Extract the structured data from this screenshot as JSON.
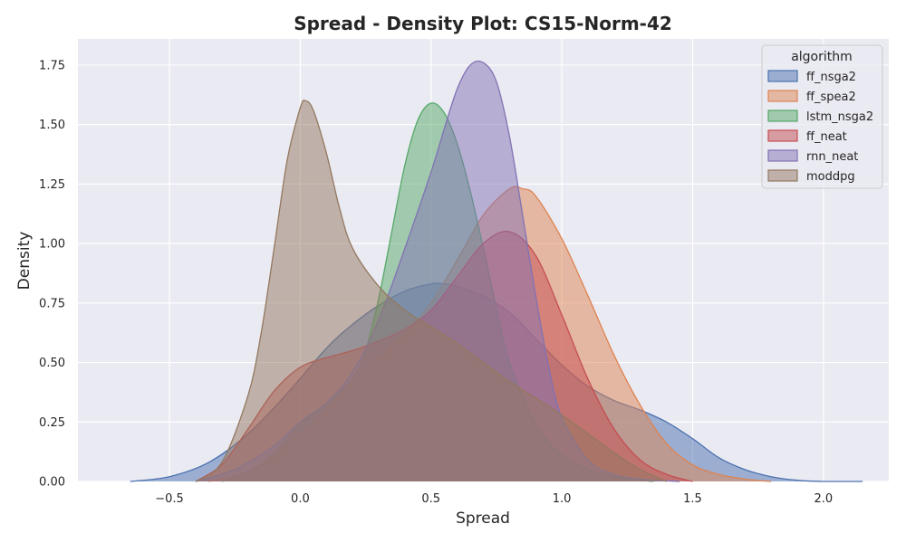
{
  "chart_data": {
    "type": "area",
    "title": "Spread - Density Plot: CS15-Norm-42",
    "xlabel": "Spread",
    "ylabel": "Density",
    "xlim": [
      -0.85,
      2.25
    ],
    "ylim": [
      0,
      1.86
    ],
    "xticks": [
      "−0.5",
      "0.0",
      "0.5",
      "1.0",
      "1.5",
      "2.0"
    ],
    "xtick_values": [
      -0.5,
      0.0,
      0.5,
      1.0,
      1.5,
      2.0
    ],
    "yticks": [
      "0.00",
      "0.25",
      "0.50",
      "0.75",
      "1.00",
      "1.25",
      "1.50",
      "1.75"
    ],
    "ytick_values": [
      0,
      0.25,
      0.5,
      0.75,
      1.0,
      1.25,
      1.5,
      1.75
    ],
    "grid": true,
    "background": "#eaeaf2",
    "legend": {
      "title": "algorithm",
      "placement": "top-right"
    },
    "series": [
      {
        "name": "ff_nsga2",
        "color": "#4c72b0",
        "x": [
          -0.65,
          -0.5,
          -0.35,
          -0.2,
          -0.05,
          0.1,
          0.2,
          0.3,
          0.4,
          0.5,
          0.55,
          0.6,
          0.7,
          0.8,
          0.9,
          1.0,
          1.1,
          1.2,
          1.3,
          1.4,
          1.5,
          1.6,
          1.7,
          1.8,
          1.9,
          2.0,
          2.15
        ],
        "y": [
          0.0,
          0.02,
          0.08,
          0.2,
          0.37,
          0.56,
          0.66,
          0.74,
          0.8,
          0.83,
          0.83,
          0.82,
          0.78,
          0.71,
          0.6,
          0.49,
          0.4,
          0.34,
          0.3,
          0.25,
          0.18,
          0.1,
          0.05,
          0.02,
          0.005,
          0.0,
          0.0
        ]
      },
      {
        "name": "ff_spea2",
        "color": "#dd8452",
        "x": [
          -0.35,
          -0.2,
          -0.05,
          0.1,
          0.2,
          0.3,
          0.4,
          0.5,
          0.6,
          0.7,
          0.8,
          0.85,
          0.9,
          1.0,
          1.1,
          1.2,
          1.3,
          1.4,
          1.5,
          1.6,
          1.7,
          1.8
        ],
        "y": [
          0.0,
          0.04,
          0.15,
          0.3,
          0.42,
          0.52,
          0.62,
          0.75,
          0.93,
          1.12,
          1.23,
          1.23,
          1.2,
          1.02,
          0.78,
          0.53,
          0.32,
          0.16,
          0.07,
          0.03,
          0.01,
          0.0
        ]
      },
      {
        "name": "lstm_nsga2",
        "color": "#55a868",
        "x": [
          -0.3,
          -0.15,
          0.0,
          0.1,
          0.2,
          0.25,
          0.3,
          0.35,
          0.4,
          0.45,
          0.5,
          0.55,
          0.6,
          0.65,
          0.7,
          0.75,
          0.8,
          0.9,
          1.0,
          1.1,
          1.2,
          1.35
        ],
        "y": [
          0.0,
          0.07,
          0.24,
          0.33,
          0.43,
          0.55,
          0.77,
          1.05,
          1.33,
          1.52,
          1.59,
          1.55,
          1.42,
          1.22,
          0.98,
          0.73,
          0.5,
          0.24,
          0.11,
          0.05,
          0.02,
          0.0
        ]
      },
      {
        "name": "ff_neat",
        "color": "#c44e52",
        "x": [
          -0.4,
          -0.3,
          -0.2,
          -0.1,
          0.0,
          0.1,
          0.2,
          0.3,
          0.4,
          0.5,
          0.6,
          0.7,
          0.8,
          0.9,
          1.0,
          1.1,
          1.2,
          1.3,
          1.4,
          1.5
        ],
        "y": [
          0.0,
          0.07,
          0.22,
          0.38,
          0.48,
          0.52,
          0.55,
          0.59,
          0.64,
          0.72,
          0.86,
          1.0,
          1.05,
          0.95,
          0.7,
          0.43,
          0.22,
          0.09,
          0.03,
          0.0
        ]
      },
      {
        "name": "rnn_neat",
        "color": "#8172b3",
        "x": [
          -0.4,
          -0.25,
          -0.1,
          0.0,
          0.1,
          0.2,
          0.3,
          0.4,
          0.5,
          0.55,
          0.6,
          0.65,
          0.7,
          0.75,
          0.8,
          0.85,
          0.9,
          0.95,
          1.0,
          1.1,
          1.2,
          1.3,
          1.45
        ],
        "y": [
          0.0,
          0.05,
          0.15,
          0.25,
          0.33,
          0.46,
          0.68,
          0.98,
          1.3,
          1.48,
          1.65,
          1.75,
          1.76,
          1.68,
          1.45,
          1.12,
          0.78,
          0.48,
          0.27,
          0.09,
          0.03,
          0.01,
          0.0
        ]
      },
      {
        "name": "moddpg",
        "color": "#937860",
        "x": [
          -0.4,
          -0.3,
          -0.2,
          -0.15,
          -0.1,
          -0.05,
          0.0,
          0.02,
          0.05,
          0.1,
          0.15,
          0.2,
          0.3,
          0.4,
          0.5,
          0.6,
          0.7,
          0.8,
          0.9,
          1.0,
          1.1,
          1.2,
          1.3,
          1.4
        ],
        "y": [
          0.0,
          0.08,
          0.36,
          0.62,
          0.98,
          1.35,
          1.57,
          1.6,
          1.56,
          1.38,
          1.15,
          0.98,
          0.82,
          0.72,
          0.65,
          0.58,
          0.5,
          0.42,
          0.35,
          0.28,
          0.2,
          0.12,
          0.05,
          0.0
        ]
      }
    ]
  }
}
